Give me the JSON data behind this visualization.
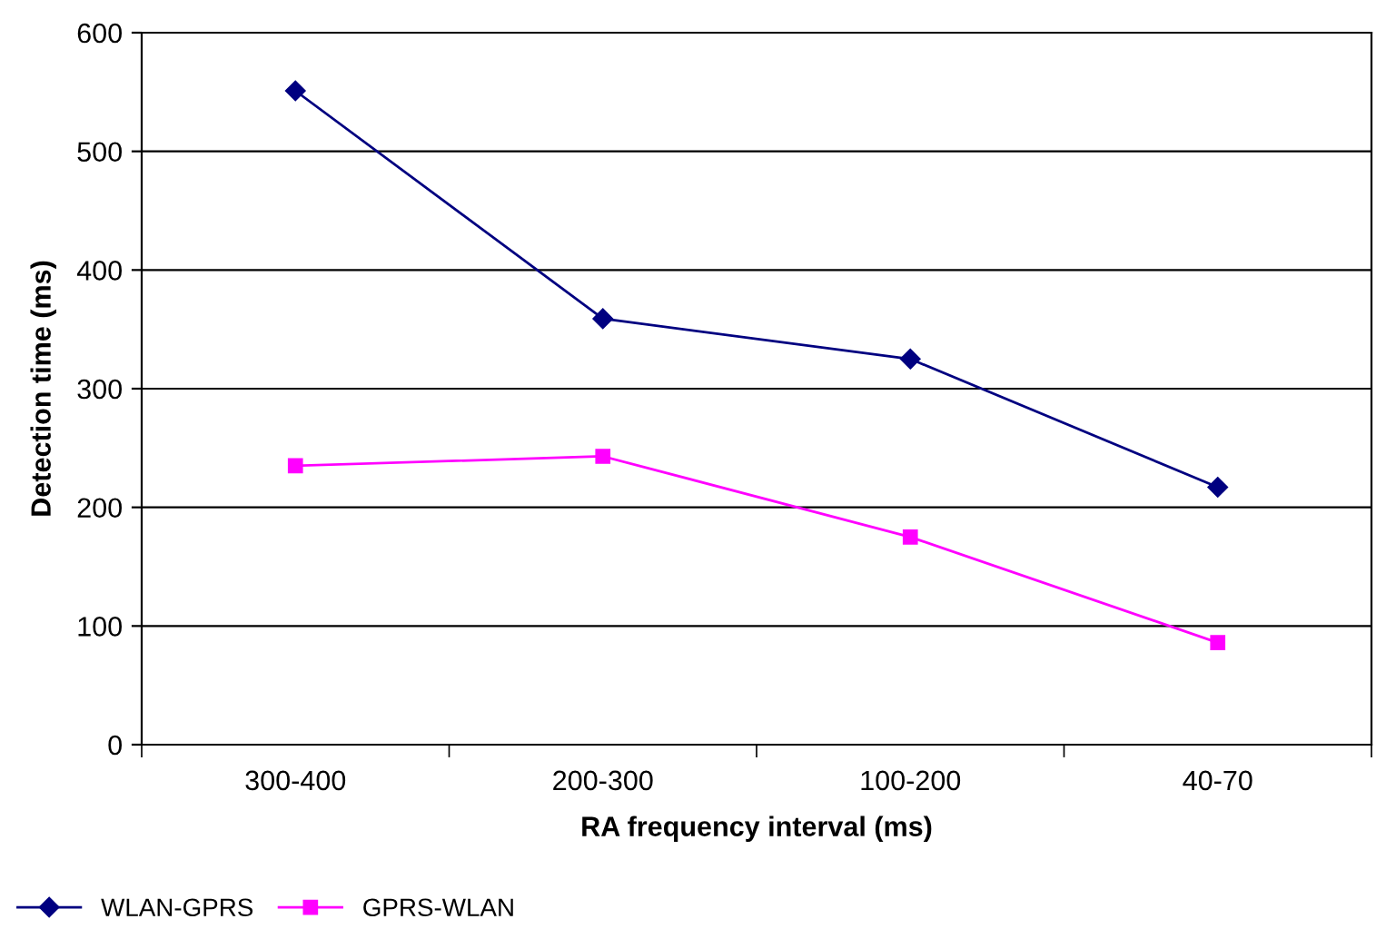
{
  "chart_data": {
    "type": "line",
    "xlabel": "RA frequency interval (ms)",
    "ylabel": "Detection time (ms)",
    "categories": [
      "300-400",
      "200-300",
      "100-200",
      "40-70"
    ],
    "series": [
      {
        "name": "WLAN-GPRS",
        "color": "#000080",
        "marker": "diamond",
        "values": [
          551,
          359,
          325,
          217
        ]
      },
      {
        "name": "GPRS-WLAN",
        "color": "#ff00ff",
        "marker": "square",
        "values": [
          235,
          243,
          175,
          86
        ]
      }
    ],
    "ylim": [
      0,
      600
    ],
    "yticks": [
      0,
      100,
      200,
      300,
      400,
      500,
      600
    ],
    "grid": "y",
    "legend": "bottom left"
  }
}
